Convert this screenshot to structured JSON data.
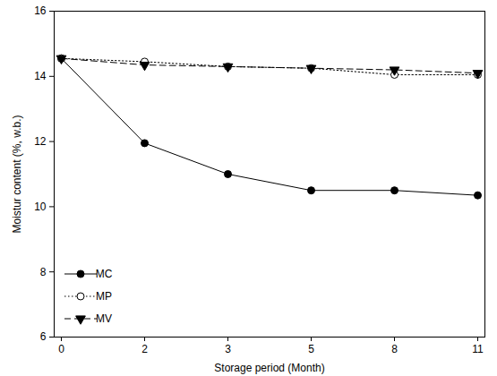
{
  "chart_data": {
    "type": "line",
    "xlabel": "Storage period (Month)",
    "ylabel": "Moistur content (%, w.b.)",
    "categories": [
      "0",
      "2",
      "3",
      "5",
      "8",
      "11"
    ],
    "series": [
      {
        "name": "MC",
        "color": "#000000",
        "marker": "circle",
        "line_style": "solid",
        "values": [
          14.55,
          11.95,
          11.0,
          10.5,
          10.5,
          10.35
        ]
      },
      {
        "name": "MP",
        "color": "#000000",
        "marker": "circle-open",
        "line_style": "dotted",
        "values": [
          14.55,
          14.45,
          14.3,
          14.25,
          14.05,
          14.05
        ]
      },
      {
        "name": "MV",
        "color": "#000000",
        "marker": "triangle-down",
        "line_style": "dashed",
        "values": [
          14.55,
          14.35,
          14.3,
          14.25,
          14.2,
          14.1
        ]
      }
    ],
    "ylim": [
      6,
      16
    ],
    "yticks": [
      6,
      8,
      10,
      12,
      14,
      16
    ],
    "grid": false,
    "legend": "lower left"
  }
}
